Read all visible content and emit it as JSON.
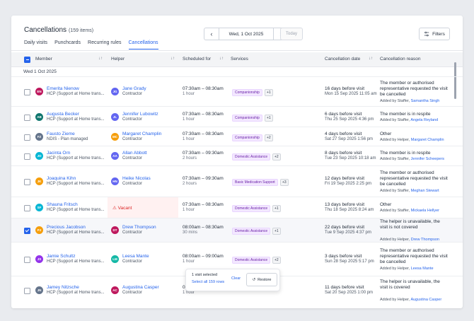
{
  "page": {
    "title": "Cancellations",
    "count": "(159 items)",
    "tabs": [
      "Daily visits",
      "Punchcards",
      "Recurring rules",
      "Cancellations"
    ],
    "active_tab": "Cancellations",
    "date": "Wed, 1 Oct 2025",
    "today_label": "Today",
    "filters_label": "Filters"
  },
  "columns": {
    "member": "Member",
    "helper": "Helper",
    "scheduled": "Scheduled for",
    "services": "Services",
    "cancellation_date": "Cancellation date",
    "reason": "Cancellation reason"
  },
  "group_label": "Wed 1 Oct 2025",
  "rows": [
    {
      "checked": false,
      "member": {
        "initials": "EN",
        "name": "Emerita Nienow",
        "sub": "HCP (Support at Home trans...",
        "color": "#be185d"
      },
      "helper": {
        "initials": "JG",
        "name": "Jane Grady",
        "sub": "Contractor",
        "color": "#6366f1"
      },
      "time": "07:30am – 08:30am",
      "duration": "1 hour",
      "service": "Companionship",
      "more": "+1",
      "cdate": "16 days before visit",
      "cdate_sub": "Mon 15 Sep 2025 11:05 am",
      "reason": "The member or authorised representative requested the visit be cancelled",
      "added_prefix": "Added by Staffer,",
      "added_by": "Samantha Singh"
    },
    {
      "checked": false,
      "member": {
        "initials": "AB",
        "name": "Augusta Becker",
        "sub": "HCP (Support at Home trans...",
        "color": "#0f766e"
      },
      "helper": {
        "initials": "JL",
        "name": "Jennifer Lubowitz",
        "sub": "Contractor",
        "color": "#6366f1"
      },
      "time": "07:30am – 08:30am",
      "duration": "1 hour",
      "service": "Companionship",
      "more": "+1",
      "cdate": "6 days before visit",
      "cdate_sub": "Thu 25 Sep 2025 4:36 pm",
      "reason": "The member is in respite",
      "added_prefix": "Added by Staffer,",
      "added_by": "Angela Reyland"
    },
    {
      "checked": false,
      "member": {
        "initials": "FZ",
        "name": "Fausto Zieme",
        "sub": "NDIS - Plan managed",
        "color": "#64748b"
      },
      "helper": {
        "initials": "MC",
        "name": "Margaret Champlin",
        "sub": "Contractor",
        "color": "#f59e0b"
      },
      "time": "07:30am – 08:30am",
      "duration": "1 hour",
      "service": "Companionship",
      "more": "+2",
      "cdate": "4 days before visit",
      "cdate_sub": "Sat 27 Sep 2025 1:56 pm",
      "reason": "Other",
      "added_prefix": "Added by Helper,",
      "added_by": "Margaret Champlin"
    },
    {
      "checked": false,
      "member": {
        "initials": "JO",
        "name": "Jacinta Orn",
        "sub": "HCP (Support at Home trans...",
        "color": "#06b6d4"
      },
      "helper": {
        "initials": "AA",
        "name": "Allan Abbott",
        "sub": "Contractor",
        "color": "#6366f1"
      },
      "time": "07:30am – 09:30am",
      "duration": "2 hours",
      "service": "Domestic Assistance",
      "more": "+2",
      "cdate": "8 days before visit",
      "cdate_sub": "Tue 23 Sep 2025 10:18 am",
      "reason": "The member is in respite",
      "added_prefix": "Added by Staffer,",
      "added_by": "Jennifer Scheepers"
    },
    {
      "checked": false,
      "member": {
        "initials": "JK",
        "name": "Joaquina Kihn",
        "sub": "HCP (Support at Home trans...",
        "color": "#f59e0b"
      },
      "helper": {
        "initials": "HN",
        "name": "Heike Nicolas",
        "sub": "Contractor",
        "color": "#6366f1"
      },
      "time": "07:30am – 09:30am",
      "duration": "2 hours",
      "service": "Basic Medication Support",
      "more": "+3",
      "cdate": "12 days before visit",
      "cdate_sub": "Fri 19 Sep 2025 2:25 pm",
      "reason": "The member or authorised representative requested the visit be cancelled",
      "added_prefix": "Added by Staffer,",
      "added_by": "Meghan Stewart"
    },
    {
      "checked": false,
      "vacant": true,
      "vacant_label": "Vacant",
      "member": {
        "initials": "SF",
        "name": "Shauna Fritsch",
        "sub": "HCP (Support at Home trans...",
        "color": "#06b6d4"
      },
      "time": "07:30am – 08:30am",
      "duration": "1 hour",
      "service": "Domestic Assistance",
      "more": "+1",
      "cdate": "13 days before visit",
      "cdate_sub": "Thu 18 Sep 2025 8:24 am",
      "reason": "Other",
      "added_prefix": "Added by Staffer,",
      "added_by": "Mickaela Hellyer"
    },
    {
      "checked": true,
      "member": {
        "initials": "PJ",
        "name": "Precious Jacobson",
        "sub": "HCP (Support at Home trans...",
        "color": "#f59e0b"
      },
      "helper": {
        "initials": "DT",
        "name": "Drew Thompson",
        "sub": "Contractor",
        "color": "#be185d"
      },
      "time": "08:00am – 08:30am",
      "duration": "30 mins",
      "service": "Domestic Assistance",
      "more": "+1",
      "cdate": "22 days before visit",
      "cdate_sub": "Tue 9 Sep 2025 4:37 pm",
      "reason": "The helper is unavailable, the visit is not covered",
      "added_prefix": "Added by Helper,",
      "added_by": "Drew Thompson"
    },
    {
      "checked": false,
      "member": {
        "initials": "JS",
        "name": "Jamie Schultz",
        "sub": "HCP (Support at Home trans...",
        "color": "#9333ea"
      },
      "helper": {
        "initials": "LM",
        "name": "Leesa Mante",
        "sub": "Contractor",
        "color": "#14b8a6"
      },
      "time": "08:00am – 09:00am",
      "duration": "1 hour",
      "service": "Domestic Assistance",
      "more": "+2",
      "cdate": "3 days before visit",
      "cdate_sub": "Sun 28 Sep 2025 5:17 pm",
      "reason": "The member or authorised representative requested the visit be cancelled",
      "added_prefix": "Added by Helper,",
      "added_by": "Leesa Mante"
    },
    {
      "checked": false,
      "member": {
        "initials": "JN",
        "name": "Jamey Nitzsche",
        "sub": "HCP (Support at Home trans...",
        "color": "#64748b"
      },
      "helper": {
        "initials": "AC",
        "name": "Augustina Casper",
        "sub": "Contractor",
        "color": "#be185d"
      },
      "time": "08:00am – 09:00am",
      "duration": "1 hour",
      "service": "",
      "more": "",
      "cdate": "11 days before visit",
      "cdate_sub": "Sat 20 Sep 2025 1:00 pm",
      "reason": "The helper is unavailable, the visit is covered",
      "added_prefix": "Added by Helper,",
      "added_by": "Augustina Casper"
    }
  ],
  "bulk": {
    "selected": "1 visit selected",
    "select_all": "Select all 159 rows",
    "clear": "Clear",
    "restore": "Restore"
  },
  "icons": {
    "prev": "chevron-left-icon",
    "next": "chevron-right-icon",
    "filters": "sliders-icon",
    "warning": "warning-icon",
    "restore": "undo-icon",
    "sort": "sort-icon"
  }
}
